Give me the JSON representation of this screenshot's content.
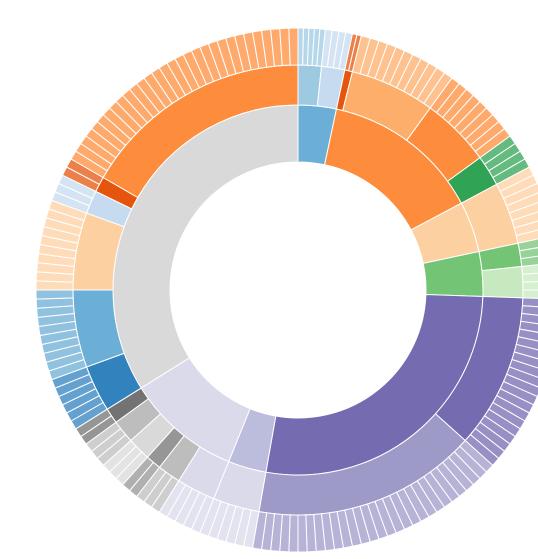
{
  "chart_data": {
    "type": "sunburst",
    "nodes": [
      {
        "color": "#6baed6",
        "children": [
          {
            "color": "#9ecae1",
            "leaves": [
              1.2,
              1.2,
              1.2,
              1.2,
              1.2
            ]
          },
          {
            "color": "#c6dbef",
            "leaves": [
              1.5,
              1.5,
              1.5,
              1.5
            ]
          }
        ]
      },
      {
        "color": "#fd8d3c",
        "children": [
          {
            "color": "#e6550d",
            "leaves": [
              1,
              1
            ]
          },
          {
            "color": "#fdae6b",
            "leaves": [
              2,
              2,
              2,
              2,
              2,
              2,
              2,
              2,
              2,
              2,
              2
            ]
          },
          {
            "color": "#fd8d3c",
            "leaves": [
              2,
              2,
              2,
              2,
              2,
              2,
              2,
              2,
              2
            ]
          },
          {
            "color": "#31a354",
            "leaves": [
              2,
              2,
              2,
              2
            ]
          }
        ]
      },
      {
        "color": "#fdd0a2",
        "children": [
          {
            "color": "#fdd0a2",
            "leaves": [
              2,
              2,
              2,
              2,
              2,
              2,
              2,
              2
            ]
          }
        ]
      },
      {
        "color": "#74c476",
        "children": [
          {
            "color": "#74c476",
            "leaves": [
              2,
              2,
              2
            ]
          },
          {
            "color": "#c7e9c0",
            "leaves": [
              2,
              2,
              2,
              2
            ]
          }
        ]
      },
      {
        "color": "#756bb1",
        "children": [
          {
            "color": "#756bb1",
            "leaves": [
              2,
              2,
              2,
              2,
              2,
              2,
              2,
              2,
              2,
              2,
              2,
              2,
              2,
              2,
              2,
              2,
              2,
              2,
              2,
              2
            ]
          },
          {
            "color": "#9e9ac8",
            "leaves": [
              2,
              2,
              2,
              2,
              2,
              2,
              2,
              2,
              2,
              2,
              2,
              2,
              2,
              2,
              2,
              2,
              2,
              2,
              2,
              2,
              2,
              2,
              2,
              2,
              2,
              2,
              2,
              2,
              2
            ]
          }
        ]
      },
      {
        "color": "#bcbddc",
        "children": [
          {
            "color": "#dadaeb",
            "leaves": [
              2,
              2,
              2,
              2,
              2,
              2
            ]
          }
        ]
      },
      {
        "color": "#dadaeb",
        "children": [
          {
            "color": "#dadaeb",
            "leaves": [
              2,
              2,
              2,
              2,
              2
            ]
          },
          {
            "color": "#bdbdbd",
            "leaves": [
              2,
              2,
              2
            ]
          },
          {
            "color": "#969696",
            "leaves": [
              2,
              2
            ]
          },
          {
            "color": "#d9d9d9",
            "leaves": [
              2,
              2,
              2
            ]
          },
          {
            "color": "#bdbdbd",
            "leaves": [
              2,
              2,
              2
            ]
          },
          {
            "color": "#737373",
            "leaves": [
              2,
              2
            ]
          }
        ]
      },
      {
        "color": "#d9d9d9",
        "children": [
          {
            "color": "#3182bd",
            "leaves": [
              2,
              2,
              2,
              2,
              2,
              2
            ]
          },
          {
            "color": "#6baed6",
            "leaves": [
              2,
              2,
              2,
              2,
              2,
              2,
              2,
              2,
              2,
              2
            ]
          },
          {
            "color": "#fdd0a2",
            "leaves": [
              2,
              2,
              2,
              2,
              2,
              2,
              2,
              2,
              2,
              2
            ]
          },
          {
            "color": "#c6dbef",
            "leaves": [
              2,
              2,
              2
            ]
          },
          {
            "color": "#e6550d",
            "leaves": [
              2,
              2
            ]
          },
          {
            "color": "#fd8d3c",
            "leaves": [
              2,
              2,
              2,
              2,
              2,
              2,
              2,
              2,
              2,
              2,
              2,
              2,
              2,
              2,
              2,
              2,
              2,
              2,
              2,
              2,
              2,
              2,
              2,
              2,
              2,
              2,
              2,
              2,
              2,
              2
            ]
          }
        ]
      }
    ]
  }
}
